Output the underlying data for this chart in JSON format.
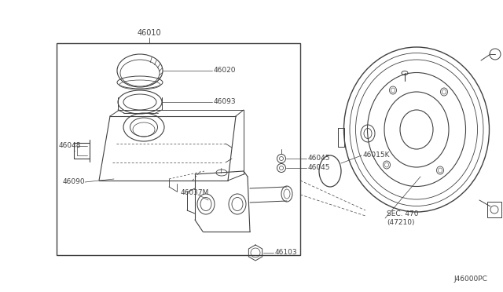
{
  "bg_color": "#ffffff",
  "line_color": "#404040",
  "fig_width": 6.4,
  "fig_height": 3.72,
  "dpi": 100,
  "title_label": "46010",
  "footer_label": "J46000PC",
  "sec_label": "SEC. 470\n(47210)"
}
